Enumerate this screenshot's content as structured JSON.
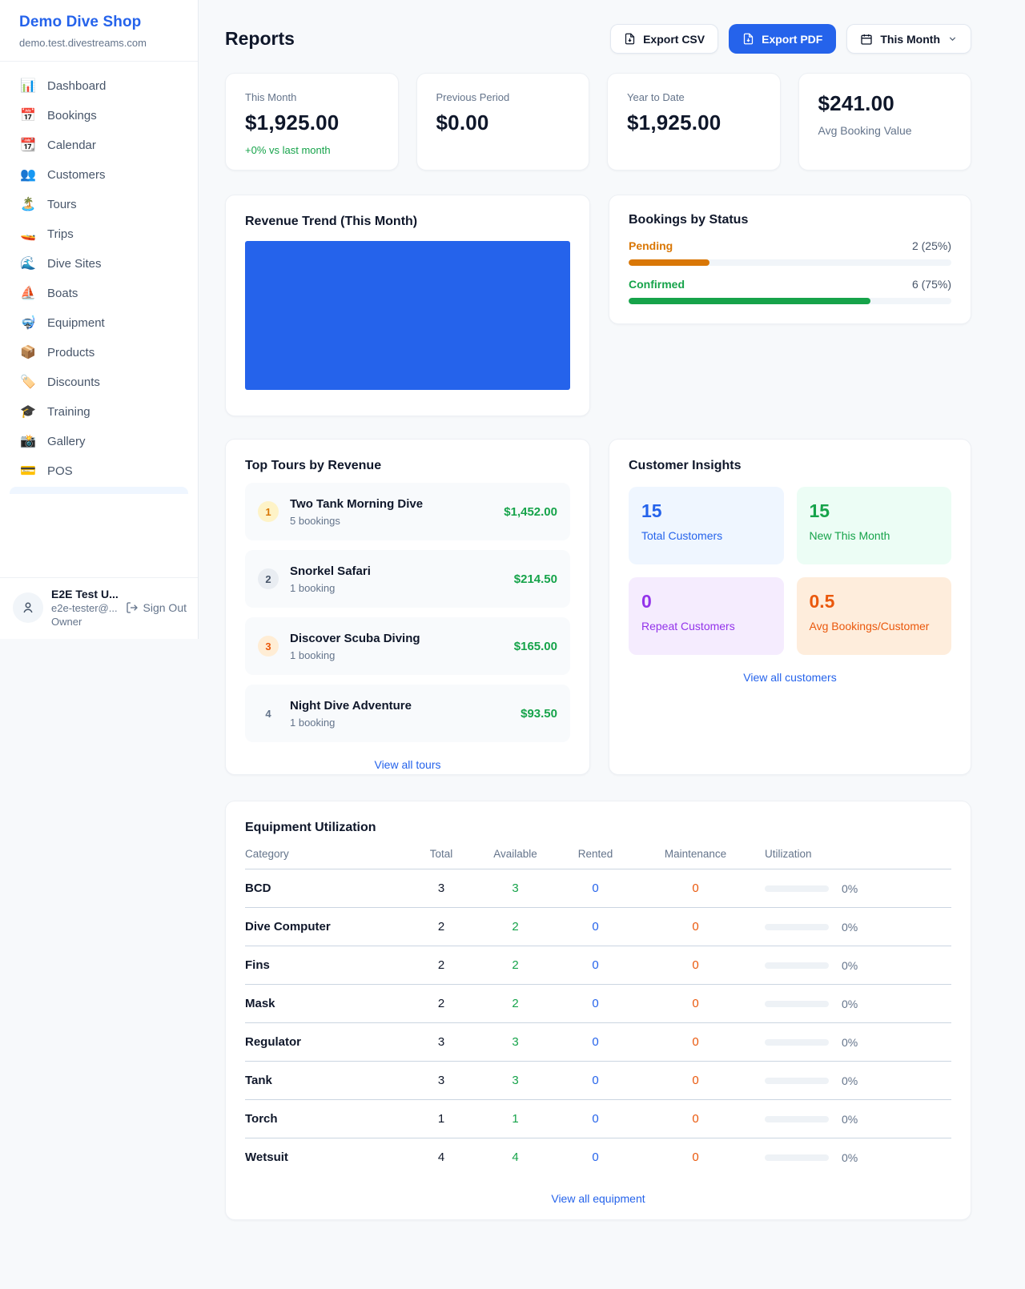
{
  "brand": {
    "name": "Demo Dive Shop",
    "domain": "demo.test.divestreams.com"
  },
  "sidebar": {
    "items": [
      {
        "icon": "📊",
        "label": "Dashboard"
      },
      {
        "icon": "📅",
        "label": "Bookings"
      },
      {
        "icon": "📆",
        "label": "Calendar"
      },
      {
        "icon": "👥",
        "label": "Customers"
      },
      {
        "icon": "🏝️",
        "label": "Tours"
      },
      {
        "icon": "🚤",
        "label": "Trips"
      },
      {
        "icon": "🌊",
        "label": "Dive Sites"
      },
      {
        "icon": "⛵",
        "label": "Boats"
      },
      {
        "icon": "🤿",
        "label": "Equipment"
      },
      {
        "icon": "📦",
        "label": "Products"
      },
      {
        "icon": "🏷️",
        "label": "Discounts"
      },
      {
        "icon": "🎓",
        "label": "Training"
      },
      {
        "icon": "📸",
        "label": "Gallery"
      },
      {
        "icon": "💳",
        "label": "POS"
      }
    ],
    "user": {
      "name": "E2E Test U...",
      "email": "e2e-tester@...",
      "role": "Owner",
      "sign_out": "Sign Out"
    }
  },
  "header": {
    "title": "Reports",
    "export_csv": "Export CSV",
    "export_pdf": "Export PDF",
    "period": "This Month"
  },
  "stats": [
    {
      "label": "This Month",
      "value": "$1,925.00",
      "delta": "+0% vs last month"
    },
    {
      "label": "Previous Period",
      "value": "$0.00"
    },
    {
      "label": "Year to Date",
      "value": "$1,925.00"
    },
    {
      "label": "Avg Booking Value",
      "value": "$241.00"
    }
  ],
  "revenue_trend": {
    "title": "Revenue Trend (This Month)",
    "bar_color": "#2563eb"
  },
  "chart_data": {
    "type": "bar",
    "title": "Revenue Trend (This Month)",
    "categories": [
      "This Month"
    ],
    "values": [
      1925
    ],
    "series_name": "Revenue",
    "bar_color": "#2563eb",
    "axes_visible": false,
    "note_layout": "single bar fills entire plot area"
  },
  "bookings_by_status": {
    "title": "Bookings by Status",
    "rows": [
      {
        "label": "Pending",
        "count_text": "2 (25%)",
        "pct": 25,
        "color": "#d97706"
      },
      {
        "label": "Confirmed",
        "count_text": "6 (75%)",
        "pct": 75,
        "color": "#16a34a"
      }
    ]
  },
  "top_tours": {
    "title": "Top Tours by Revenue",
    "items": [
      {
        "rank": "1",
        "name": "Two Tank Morning Dive",
        "bookings": "5 bookings",
        "revenue": "$1,452.00",
        "badge_bg": "#fef3c7",
        "badge_color": "#d97706"
      },
      {
        "rank": "2",
        "name": "Snorkel Safari",
        "bookings": "1 booking",
        "revenue": "$214.50",
        "badge_bg": "#e9edf2",
        "badge_color": "#475569"
      },
      {
        "rank": "3",
        "name": "Discover Scuba Diving",
        "bookings": "1 booking",
        "revenue": "$165.00",
        "badge_bg": "#ffedd5",
        "badge_color": "#ea580c"
      },
      {
        "rank": "4",
        "name": "Night Dive Adventure",
        "bookings": "1 booking",
        "revenue": "$93.50",
        "badge_bg": "transparent",
        "badge_color": "#64748b"
      }
    ],
    "link": "View all tours"
  },
  "customer_insights": {
    "title": "Customer Insights",
    "tiles": [
      {
        "value": "15",
        "label": "Total Customers",
        "bg": "#eff6ff",
        "color": "#2563eb"
      },
      {
        "value": "15",
        "label": "New This Month",
        "bg": "#ecfdf5",
        "color": "#16a34a"
      },
      {
        "value": "0",
        "label": "Repeat Customers",
        "bg": "#f5ecfe",
        "color": "#9333ea"
      },
      {
        "value": "0.5",
        "label": "Avg Bookings/Customer",
        "bg": "#feeddc",
        "color": "#ea580c"
      }
    ],
    "link": "View all customers"
  },
  "equipment": {
    "title": "Equipment Utilization",
    "headers": {
      "category": "Category",
      "total": "Total",
      "available": "Available",
      "rented": "Rented",
      "maintenance": "Maintenance",
      "utilization": "Utilization"
    },
    "rows": [
      {
        "category": "BCD",
        "total": "3",
        "available": "3",
        "rented": "0",
        "maintenance": "0",
        "utilization_pct": 0,
        "utilization_text": "0%"
      },
      {
        "category": "Dive Computer",
        "total": "2",
        "available": "2",
        "rented": "0",
        "maintenance": "0",
        "utilization_pct": 0,
        "utilization_text": "0%"
      },
      {
        "category": "Fins",
        "total": "2",
        "available": "2",
        "rented": "0",
        "maintenance": "0",
        "utilization_pct": 0,
        "utilization_text": "0%"
      },
      {
        "category": "Mask",
        "total": "2",
        "available": "2",
        "rented": "0",
        "maintenance": "0",
        "utilization_pct": 0,
        "utilization_text": "0%"
      },
      {
        "category": "Regulator",
        "total": "3",
        "available": "3",
        "rented": "0",
        "maintenance": "0",
        "utilization_pct": 0,
        "utilization_text": "0%"
      },
      {
        "category": "Tank",
        "total": "3",
        "available": "3",
        "rented": "0",
        "maintenance": "0",
        "utilization_pct": 0,
        "utilization_text": "0%"
      },
      {
        "category": "Torch",
        "total": "1",
        "available": "1",
        "rented": "0",
        "maintenance": "0",
        "utilization_pct": 0,
        "utilization_text": "0%"
      },
      {
        "category": "Wetsuit",
        "total": "4",
        "available": "4",
        "rented": "0",
        "maintenance": "0",
        "utilization_pct": 0,
        "utilization_text": "0%"
      }
    ],
    "link": "View all equipment"
  }
}
